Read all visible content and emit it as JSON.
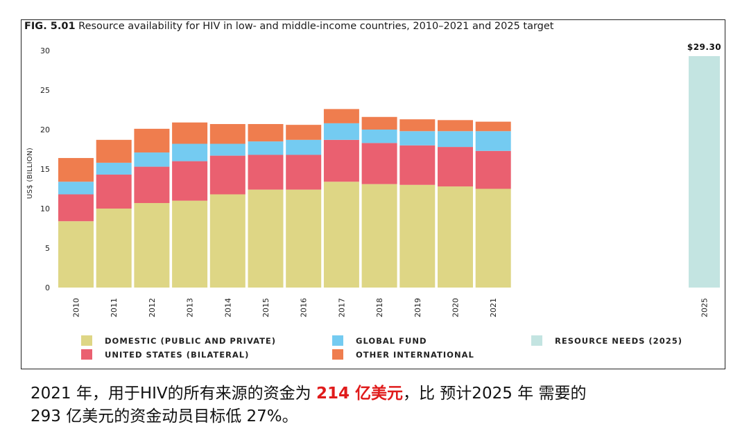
{
  "figure": {
    "number": "FIG. 5.01",
    "title": "Resource availability for HIV in low- and middle-income countries, 2010–2021 and 2025 target"
  },
  "chart_data": {
    "type": "bar",
    "stacked": true,
    "categories": [
      "2010",
      "2011",
      "2012",
      "2013",
      "2014",
      "2015",
      "2016",
      "2017",
      "2018",
      "2019",
      "2020",
      "2021"
    ],
    "series": [
      {
        "name": "DOMESTIC (PUBLIC AND PRIVATE)",
        "color": "#ded685",
        "values": [
          8.4,
          10.0,
          10.7,
          11.0,
          11.8,
          12.4,
          12.4,
          13.4,
          13.1,
          13.0,
          12.8,
          12.5
        ]
      },
      {
        "name": "UNITED STATES (BILATERAL)",
        "color": "#ea6070",
        "values": [
          3.4,
          4.3,
          4.6,
          5.0,
          4.9,
          4.4,
          4.4,
          5.3,
          5.2,
          5.0,
          5.0,
          4.8
        ]
      },
      {
        "name": "GLOBAL FUND",
        "color": "#74cbf1",
        "values": [
          1.6,
          1.5,
          1.8,
          2.2,
          1.5,
          1.7,
          1.9,
          2.1,
          1.7,
          1.8,
          2.0,
          2.5
        ]
      },
      {
        "name": "OTHER INTERNATIONAL",
        "color": "#ef7d4e",
        "values": [
          3.0,
          2.9,
          3.0,
          2.7,
          2.5,
          2.2,
          1.9,
          1.8,
          1.6,
          1.5,
          1.4,
          1.2
        ]
      }
    ],
    "target": {
      "name": "RESOURCE NEEDS (2025)",
      "category": "2025",
      "value": 29.3,
      "label": "$29.30",
      "color": "#c3e4e1"
    },
    "ylabel": "US$ (BILLION)",
    "xlabel": "",
    "ylim": [
      0,
      30
    ],
    "yticks": [
      0,
      5,
      10,
      15,
      20,
      25,
      30
    ],
    "grid": false,
    "legend_position": "bottom"
  },
  "caption": {
    "line1_a": "2021 年，用于HIV的所有来源的资金为 ",
    "line1_highlight": "214 亿美元",
    "line1_b": "，比 预计2025 年 需要的",
    "line2": "293 亿美元的资金动员目标低 27%。"
  }
}
